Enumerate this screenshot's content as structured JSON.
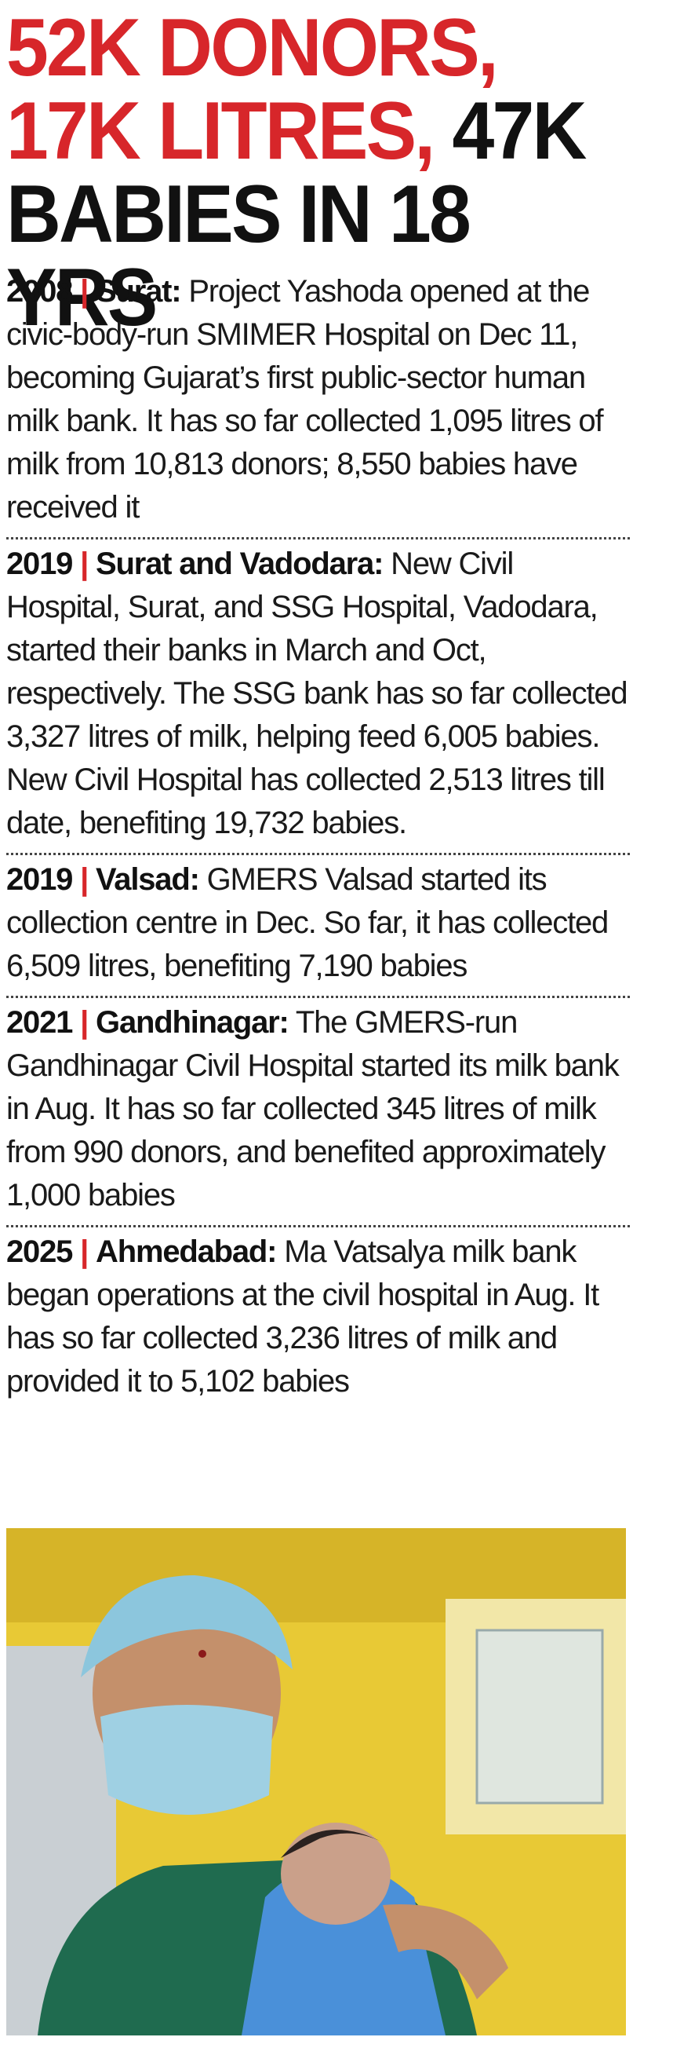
{
  "headline": {
    "line1": "52K DONORS,",
    "line2_red": "17K LITRES,",
    "line2_black": "47K",
    "line3": "BABIES IN 18 YRS"
  },
  "separator": "|",
  "entries": [
    {
      "year": "2008",
      "place": "Surat:",
      "text": "Project Yashoda opened at the civic-body-run SMIMER Hospital on Dec 11, becoming Gujarat’s first public-sector human milk bank. It has so far collected 1,095 litres of milk from 10,813 donors; 8,550 babies have received it"
    },
    {
      "year": "2019",
      "place": "Surat and Vadodara:",
      "text": "New Civil Hospital, Surat, and SSG Hospital, Vadodara, started their banks in March and Oct, respectively. The SSG bank has so far collected 3,327 litres of milk, helping feed 6,005 babies. New Civil Hospital has collected 2,513 litres till date, benefiting 19,732 babies."
    },
    {
      "year": "2019",
      "place": "Valsad:",
      "text": "GMERS Valsad started its collection centre in Dec. So far, it has collected 6,509 litres, benefiting 7,190 babies"
    },
    {
      "year": "2021",
      "place": "Gandhinagar:",
      "text": "The GMERS-run Gandhinagar Civil Hospital started its milk bank in Aug. It has so far collected 345 litres of milk from 990 donors, and benefited approximately 1,000 babies"
    },
    {
      "year": "2025",
      "place": "Ahmedabad:",
      "text": "Ma Vatsalya milk bank began operations at the civil hospital in Aug. It has so far collected 3,236 litres of milk and provided it to 5,102 babies"
    }
  ]
}
